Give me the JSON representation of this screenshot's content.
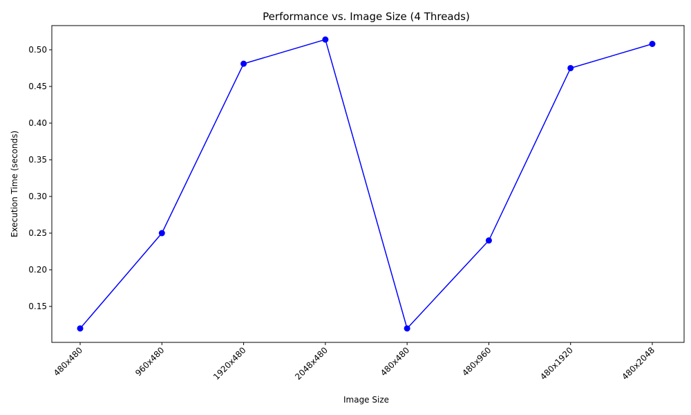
{
  "chart_data": {
    "type": "line",
    "title": "Performance vs. Image Size (4 Threads)",
    "xlabel": "Image Size",
    "ylabel": "Execution Time (seconds)",
    "categories": [
      "480x480",
      "960x480",
      "1920x480",
      "2048x480",
      "480x480",
      "480x960",
      "480x1920",
      "480x2048"
    ],
    "series": [
      {
        "values": [
          0.12,
          0.25,
          0.481,
          0.514,
          0.12,
          0.24,
          0.475,
          0.508
        ],
        "color": "#0000ff",
        "marker": "circle"
      }
    ],
    "ylim": [
      0.101,
      0.533
    ],
    "yticks": [
      0.15,
      0.2,
      0.25,
      0.3,
      0.35,
      0.4,
      0.45,
      0.5
    ],
    "ytick_labels": [
      "0.15",
      "0.20",
      "0.25",
      "0.30",
      "0.35",
      "0.40",
      "0.45",
      "0.50"
    ],
    "grid": false,
    "legend": "none"
  }
}
